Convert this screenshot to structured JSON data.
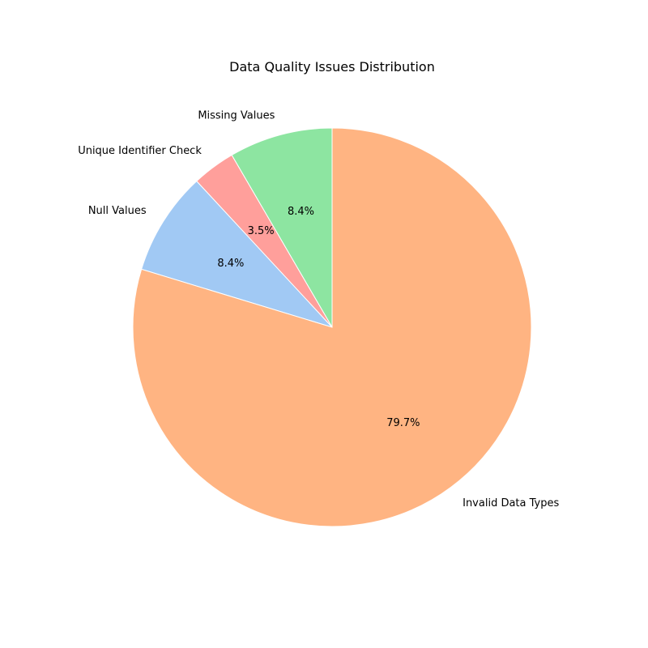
{
  "chart_data": {
    "type": "pie",
    "title": "Data Quality Issues Distribution",
    "start_angle_deg": 90,
    "direction": "counterclockwise",
    "slices": [
      {
        "label": "Missing Values",
        "value": 8.4,
        "pct_text": "8.4%",
        "color": "#8de5a1"
      },
      {
        "label": "Unique Identifier Check",
        "value": 3.5,
        "pct_text": "3.5%",
        "color": "#ff9f9b"
      },
      {
        "label": "Null Values",
        "value": 8.4,
        "pct_text": "8.4%",
        "color": "#a1c9f4"
      },
      {
        "label": "Invalid Data Types",
        "value": 79.7,
        "pct_text": "79.7%",
        "color": "#ffb482"
      }
    ]
  }
}
